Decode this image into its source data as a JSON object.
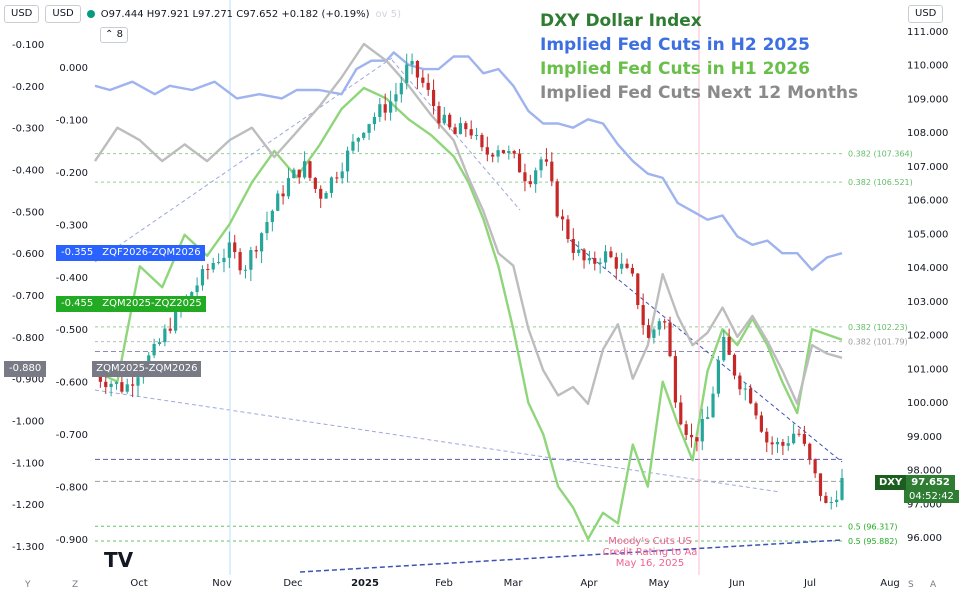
{
  "header": {
    "left_unit": "USD",
    "second_unit": "USD",
    "ohlc_text": "O97.444 H97.921 L97.271 C97.652 +0.182 (+0.19%)",
    "right_unit": "USD",
    "indicator_count": "8",
    "faded_label": "ov 5)"
  },
  "legend": [
    {
      "label": "DXY Dollar Index",
      "color": "#2e7d32"
    },
    {
      "label": "Implied Fed Cuts in H2 2025",
      "color": "#3d6fe0"
    },
    {
      "label": "Implied Fed Cuts in H1 2026",
      "color": "#6abf4b"
    },
    {
      "label": "Implied Fed Cuts Next 12 Months",
      "color": "#8a8a8a"
    }
  ],
  "tags": [
    {
      "value": "-0.355",
      "name": "ZQF2026-ZQM2026",
      "color": "#2962ff"
    },
    {
      "value": "-0.455",
      "name": "ZQM2025-ZQZ2025",
      "color": "#22ab22"
    },
    {
      "value": "-0.880",
      "name": "ZQM2025-ZQM2026",
      "color": "#787b86"
    }
  ],
  "dxy_box": {
    "symbol": "DXY",
    "price": "97.652",
    "countdown": "04:52:42"
  },
  "annotation": [
    "Moody's Cuts US",
    "Credit Rating to Aa",
    "May 16, 2025"
  ],
  "bottom_corner_left": [
    "Y",
    "Z"
  ],
  "bottom_corner_right": [
    "S",
    "A"
  ],
  "chart_data": {
    "type": "line",
    "x_ticks": [
      "Oct",
      "Nov",
      "Dec",
      "2025",
      "Feb",
      "Mar",
      "Apr",
      "May",
      "Jun",
      "Jul",
      "Aug"
    ],
    "axes": {
      "left_outer": {
        "ticks": [
          "-0.100",
          "-0.200",
          "-0.300",
          "-0.400",
          "-0.500",
          "-0.600",
          "-0.700",
          "-0.800",
          "-0.900",
          "-1.000",
          "-1.100",
          "-1.200",
          "-1.300"
        ],
        "range": [
          -1.32,
          -0.07
        ]
      },
      "left_inner": {
        "ticks": [
          "0.000",
          "-0.100",
          "-0.200",
          "-0.300",
          "-0.400",
          "-0.500",
          "-0.600",
          "-0.700",
          "-0.800",
          "-0.900"
        ],
        "range": [
          -0.95,
          0.03
        ]
      },
      "right": {
        "ticks": [
          "111.000",
          "110.000",
          "109.000",
          "108.000",
          "107.000",
          "106.000",
          "105.000",
          "104.000",
          "103.000",
          "102.000",
          "101.000",
          "100.000",
          "99.000",
          "98.000",
          "97.000",
          "96.000"
        ],
        "range": [
          95.5,
          111.3
        ]
      }
    },
    "fib_levels": [
      {
        "label": "0.382 (107.364)",
        "value": 107.364,
        "color": "#66bb6a"
      },
      {
        "label": "0.382 (106.521)",
        "value": 106.521,
        "color": "#66bb6a"
      },
      {
        "label": "0.382 (102.23)",
        "value": 102.23,
        "color": "#66bb6a"
      },
      {
        "label": "0.382 (101.79)",
        "value": 101.79,
        "color": "#9e9e9e"
      },
      {
        "label": "0.5 (96.317)",
        "value": 96.317,
        "color": "#22ab22"
      },
      {
        "label": "0.5 (95.882)",
        "value": 95.882,
        "color": "#22ab22"
      }
    ],
    "horizontal_levels": [
      {
        "value": 101.5,
        "color": "#8e8ab8"
      },
      {
        "value": 98.3,
        "color": "#5c5ca8"
      },
      {
        "value": 97.65,
        "color": "#9e9e9e"
      }
    ],
    "series": [
      {
        "name": "Implied Fed Cuts in H2 2025",
        "axis": "left_outer",
        "color": "#9fb3ef",
        "x": [
          0,
          0.02,
          0.05,
          0.08,
          0.1,
          0.13,
          0.16,
          0.19,
          0.22,
          0.25,
          0.27,
          0.3,
          0.33,
          0.35,
          0.37,
          0.39,
          0.4,
          0.42,
          0.44,
          0.46,
          0.48,
          0.5,
          0.52,
          0.54,
          0.56,
          0.58,
          0.6,
          0.62,
          0.64,
          0.66,
          0.68,
          0.7,
          0.72,
          0.74,
          0.76,
          0.78,
          0.8,
          0.82,
          0.84,
          0.86,
          0.88,
          0.9,
          0.92,
          0.94,
          0.96,
          0.98,
          1.0
        ],
        "y": [
          -0.2,
          -0.21,
          -0.19,
          -0.22,
          -0.2,
          -0.21,
          -0.19,
          -0.23,
          -0.22,
          -0.23,
          -0.21,
          -0.21,
          -0.22,
          -0.16,
          -0.14,
          -0.14,
          -0.12,
          -0.15,
          -0.16,
          -0.16,
          -0.13,
          -0.13,
          -0.17,
          -0.16,
          -0.2,
          -0.26,
          -0.29,
          -0.29,
          -0.3,
          -0.28,
          -0.29,
          -0.34,
          -0.38,
          -0.41,
          -0.42,
          -0.48,
          -0.5,
          -0.52,
          -0.51,
          -0.56,
          -0.58,
          -0.57,
          -0.6,
          -0.6,
          -0.64,
          -0.61,
          -0.6
        ]
      },
      {
        "name": "Implied Fed Cuts in H1 2026",
        "axis": "left_inner",
        "color": "#8fd67a",
        "x": [
          0,
          0.03,
          0.06,
          0.09,
          0.12,
          0.15,
          0.18,
          0.21,
          0.24,
          0.27,
          0.3,
          0.33,
          0.36,
          0.39,
          0.42,
          0.45,
          0.48,
          0.5,
          0.52,
          0.54,
          0.56,
          0.58,
          0.6,
          0.62,
          0.64,
          0.66,
          0.68,
          0.7,
          0.72,
          0.74,
          0.76,
          0.78,
          0.8,
          0.82,
          0.84,
          0.86,
          0.88,
          0.9,
          0.92,
          0.94,
          0.96,
          0.98,
          1.0
        ],
        "y": [
          -0.58,
          -0.6,
          -0.38,
          -0.42,
          -0.32,
          -0.36,
          -0.3,
          -0.22,
          -0.16,
          -0.21,
          -0.15,
          -0.08,
          -0.04,
          -0.06,
          -0.1,
          -0.13,
          -0.17,
          -0.22,
          -0.29,
          -0.38,
          -0.5,
          -0.64,
          -0.7,
          -0.8,
          -0.84,
          -0.9,
          -0.85,
          -0.87,
          -0.72,
          -0.8,
          -0.6,
          -0.68,
          -0.75,
          -0.58,
          -0.5,
          -0.53,
          -0.48,
          -0.53,
          -0.6,
          -0.66,
          -0.5,
          -0.51,
          -0.52
        ]
      },
      {
        "name": "Implied Fed Cuts Next 12 Months",
        "axis": "left_outer",
        "color": "#bdbdbd",
        "x": [
          0,
          0.03,
          0.06,
          0.09,
          0.12,
          0.15,
          0.18,
          0.21,
          0.24,
          0.27,
          0.3,
          0.33,
          0.36,
          0.39,
          0.42,
          0.45,
          0.48,
          0.5,
          0.52,
          0.54,
          0.56,
          0.58,
          0.6,
          0.62,
          0.64,
          0.66,
          0.68,
          0.7,
          0.72,
          0.74,
          0.76,
          0.78,
          0.8,
          0.82,
          0.84,
          0.86,
          0.88,
          0.9,
          0.92,
          0.94,
          0.96,
          0.98,
          1.0
        ],
        "y": [
          -0.38,
          -0.3,
          -0.33,
          -0.38,
          -0.34,
          -0.38,
          -0.33,
          -0.3,
          -0.37,
          -0.31,
          -0.25,
          -0.18,
          -0.1,
          -0.14,
          -0.2,
          -0.27,
          -0.33,
          -0.42,
          -0.5,
          -0.6,
          -0.63,
          -0.78,
          -0.88,
          -0.94,
          -0.92,
          -0.96,
          -0.83,
          -0.77,
          -0.9,
          -0.82,
          -0.65,
          -0.75,
          -0.82,
          -0.79,
          -0.73,
          -0.8,
          -0.75,
          -0.81,
          -0.88,
          -0.96,
          -0.82,
          -0.84,
          -0.85
        ]
      },
      {
        "name": "DXY Dollar Index",
        "axis": "right",
        "color": "#2e7d32",
        "x": [
          0,
          0.02,
          0.04,
          0.06,
          0.08,
          0.1,
          0.12,
          0.14,
          0.16,
          0.18,
          0.2,
          0.22,
          0.24,
          0.26,
          0.28,
          0.3,
          0.32,
          0.34,
          0.36,
          0.38,
          0.4,
          0.42,
          0.44,
          0.46,
          0.48,
          0.5,
          0.52,
          0.54,
          0.56,
          0.58,
          0.6,
          0.62,
          0.64,
          0.66,
          0.68,
          0.7,
          0.72,
          0.74,
          0.76,
          0.78,
          0.8,
          0.82,
          0.84,
          0.86,
          0.88,
          0.9,
          0.92,
          0.94,
          0.96,
          0.98,
          1.0
        ],
        "y": [
          100.8,
          100.6,
          100.4,
          101.0,
          101.5,
          102.3,
          103.0,
          103.6,
          104.2,
          104.5,
          104.0,
          104.9,
          105.8,
          106.6,
          107.0,
          106.1,
          106.7,
          107.4,
          108.2,
          108.6,
          109.0,
          110.0,
          109.4,
          108.5,
          107.9,
          108.2,
          107.3,
          107.6,
          107.2,
          106.6,
          107.3,
          105.6,
          104.6,
          104.0,
          104.4,
          104.1,
          103.6,
          101.8,
          102.7,
          99.8,
          98.8,
          99.5,
          101.8,
          100.7,
          100.1,
          98.8,
          98.7,
          99.2,
          98.0,
          96.8,
          97.65
        ]
      }
    ]
  }
}
